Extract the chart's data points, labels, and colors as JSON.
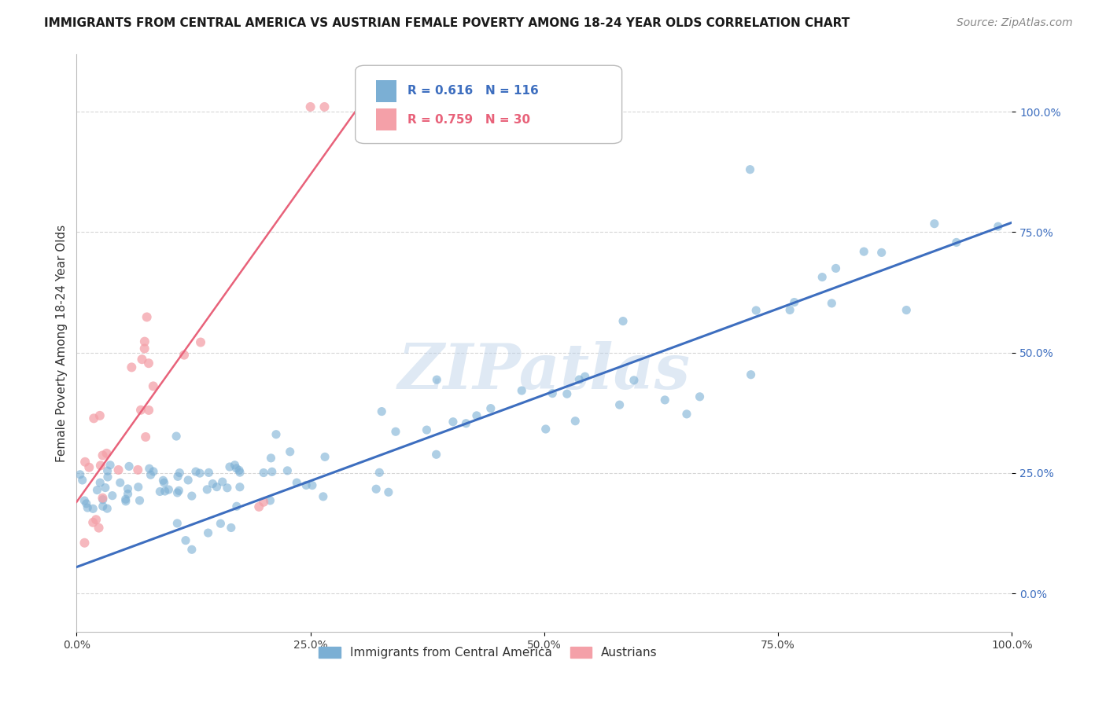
{
  "title": "IMMIGRANTS FROM CENTRAL AMERICA VS AUSTRIAN FEMALE POVERTY AMONG 18-24 YEAR OLDS CORRELATION CHART",
  "source": "Source: ZipAtlas.com",
  "ylabel": "Female Poverty Among 18-24 Year Olds",
  "xlim": [
    0.0,
    1.0
  ],
  "ylim": [
    -0.08,
    1.12
  ],
  "xticks": [
    0.0,
    0.25,
    0.5,
    0.75,
    1.0
  ],
  "yticks": [
    0.0,
    0.25,
    0.5,
    0.75,
    1.0
  ],
  "xtick_labels": [
    "0.0%",
    "25.0%",
    "50.0%",
    "75.0%",
    "100.0%"
  ],
  "ytick_labels": [
    "0.0%",
    "25.0%",
    "50.0%",
    "75.0%",
    "100.0%"
  ],
  "blue_color": "#7bafd4",
  "pink_color": "#f4a0a8",
  "blue_line_color": "#3d6ebf",
  "pink_line_color": "#e8627a",
  "r_blue": 0.616,
  "n_blue": 116,
  "r_pink": 0.759,
  "n_pink": 30,
  "legend_label_blue": "Immigrants from Central America",
  "legend_label_pink": "Austrians",
  "watermark": "ZIPatlas",
  "background_color": "#ffffff",
  "grid_color": "#cccccc",
  "blue_line_x": [
    0.0,
    1.0
  ],
  "blue_line_y": [
    0.055,
    0.77
  ],
  "pink_line_x": [
    0.0,
    0.32
  ],
  "pink_line_y": [
    0.19,
    1.06
  ]
}
